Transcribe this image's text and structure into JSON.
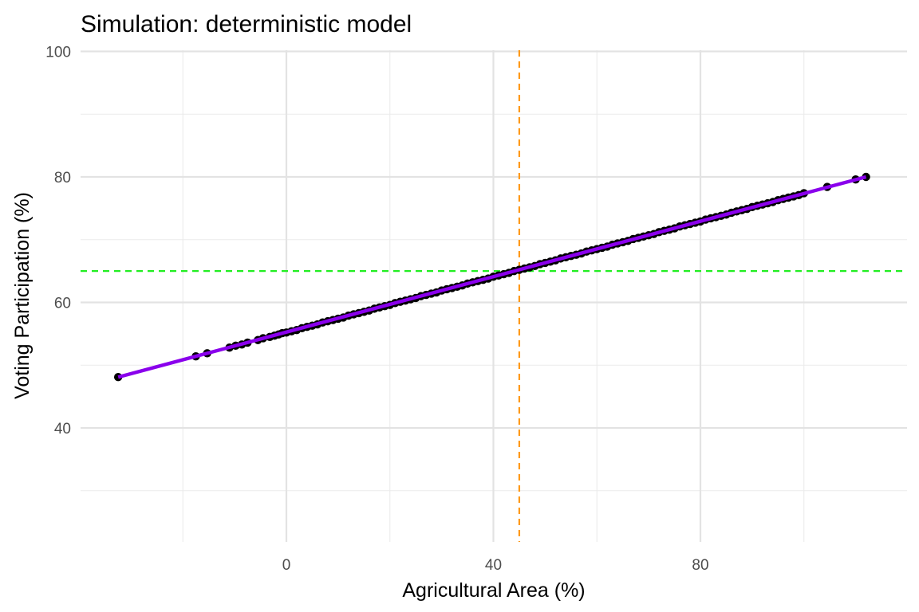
{
  "chart_data": {
    "type": "scatter",
    "title": "Simulation: deterministic model",
    "xlabel": "Agricultural Area (%)",
    "ylabel": "Voting Participation (%)",
    "xlim": [
      -32.5,
      120
    ],
    "ylim": [
      22,
      100
    ],
    "x_ticks": [
      0,
      40,
      80
    ],
    "x_tick_labels": [
      "0",
      "40",
      "80"
    ],
    "x_minor_ticks": [
      -20,
      20,
      60,
      100
    ],
    "y_ticks": [
      40,
      60,
      80,
      100
    ],
    "y_tick_labels": [
      "40",
      "60",
      "80",
      "100"
    ],
    "y_minor_ticks": [
      30,
      50,
      70,
      90
    ],
    "grid": true,
    "legend": "none",
    "fit_line": {
      "x": [
        -32.5,
        112
      ],
      "y": [
        48.1,
        80.0
      ],
      "color": "#8a00ec"
    },
    "reference_lines": [
      {
        "orientation": "vertical",
        "value": 45,
        "color": "#ff9a1a"
      },
      {
        "orientation": "horizontal",
        "value": 65,
        "color": "#22ee22"
      }
    ],
    "points": {
      "color": "#000000",
      "x": [
        -32.5,
        -17.5,
        -15.3,
        -11,
        -9.8,
        -8.6,
        -7.5,
        -5.5,
        -4.5,
        -3.2,
        -2.3,
        -1.5,
        -0.8,
        0,
        1,
        2,
        3,
        4,
        5,
        6,
        7,
        8,
        9,
        10,
        11,
        12,
        13,
        14,
        15,
        16,
        17,
        18,
        19,
        20,
        21,
        22,
        23,
        24,
        25,
        26,
        27,
        28,
        29,
        30,
        31,
        32,
        33,
        34,
        35,
        36,
        37,
        38,
        39,
        40,
        41,
        42,
        43,
        44,
        45,
        46,
        47,
        48,
        49,
        50,
        51,
        52,
        53,
        54,
        55,
        56,
        57,
        58,
        59,
        60,
        61,
        62,
        63,
        64,
        65,
        66,
        67,
        68,
        69,
        70,
        71,
        72,
        73,
        74,
        75,
        76,
        77,
        78,
        79,
        80,
        81,
        82,
        83,
        84,
        85,
        86,
        87,
        88,
        89,
        90,
        91,
        92,
        93,
        94,
        95,
        96,
        97,
        98,
        99,
        100,
        104.5,
        110,
        112
      ],
      "y": [
        48.1,
        51.4,
        51.9,
        52.8,
        53.1,
        53.3,
        53.6,
        54.0,
        54.3,
        54.5,
        54.7,
        54.9,
        55.1,
        55.2,
        55.4,
        55.6,
        55.9,
        56.1,
        56.3,
        56.5,
        56.8,
        57.0,
        57.2,
        57.4,
        57.6,
        57.9,
        58.1,
        58.3,
        58.5,
        58.7,
        59.0,
        59.2,
        59.4,
        59.6,
        59.9,
        60.1,
        60.3,
        60.5,
        60.7,
        61.0,
        61.2,
        61.4,
        61.6,
        61.9,
        62.1,
        62.3,
        62.5,
        62.7,
        63.0,
        63.2,
        63.4,
        63.6,
        63.8,
        64.1,
        64.3,
        64.5,
        64.7,
        65.0,
        65.2,
        65.4,
        65.6,
        65.8,
        66.1,
        66.3,
        66.5,
        66.7,
        67.0,
        67.2,
        67.4,
        67.6,
        67.8,
        68.1,
        68.3,
        68.5,
        68.7,
        68.9,
        69.2,
        69.4,
        69.6,
        69.8,
        70.1,
        70.3,
        70.5,
        70.7,
        70.9,
        71.2,
        71.4,
        71.6,
        71.8,
        72.1,
        72.3,
        72.5,
        72.7,
        72.9,
        73.2,
        73.4,
        73.6,
        73.8,
        74.0,
        74.3,
        74.5,
        74.7,
        74.9,
        75.2,
        75.4,
        75.6,
        75.8,
        76.0,
        76.3,
        76.5,
        76.7,
        76.9,
        77.1,
        77.4,
        78.4,
        79.6,
        80.0
      ]
    }
  }
}
